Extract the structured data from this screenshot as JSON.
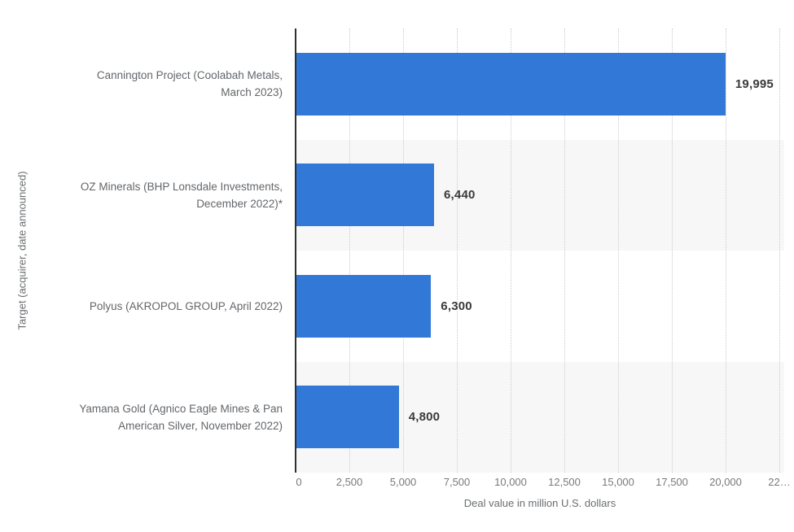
{
  "chart_data": {
    "type": "bar",
    "orientation": "horizontal",
    "title": "",
    "xlabel": "Deal value in million U.S. dollars",
    "ylabel": "Target (acquirer, date announced)",
    "xlim": [
      0,
      22500
    ],
    "grid": "vertical-dotted",
    "legend": "none",
    "bar_color": "#3278d7",
    "band_color": "#f7f7f7",
    "categories": [
      "Cannington Project (Coolabah Metals, March 2023)",
      "OZ Minerals (BHP Lonsdale Investments, December 2022)*",
      "Polyus (AKROPOL GROUP, April 2022)",
      "Yamana Gold (Agnico Eagle Mines & Pan American Silver, November 2022)"
    ],
    "values": [
      19995,
      6440,
      6300,
      4800
    ],
    "bars": [
      {
        "label_lines": [
          "Cannington Project (Coolabah Metals,",
          "March 2023)"
        ],
        "value": 19995,
        "value_label": "19,995"
      },
      {
        "label_lines": [
          "OZ Minerals (BHP Lonsdale Investments,",
          "December 2022)*"
        ],
        "value": 6440,
        "value_label": "6,440"
      },
      {
        "label_lines": [
          "Polyus (AKROPOL GROUP, April 2022)"
        ],
        "value": 6300,
        "value_label": "6,300"
      },
      {
        "label_lines": [
          "Yamana Gold (Agnico Eagle Mines & Pan",
          "American Silver, November 2022)"
        ],
        "value": 4800,
        "value_label": "4,800"
      }
    ],
    "x_ticks": [
      {
        "value": 0,
        "label": "0"
      },
      {
        "value": 2500,
        "label": "2,500"
      },
      {
        "value": 5000,
        "label": "5,000"
      },
      {
        "value": 7500,
        "label": "7,500"
      },
      {
        "value": 10000,
        "label": "10,000"
      },
      {
        "value": 12500,
        "label": "12,500"
      },
      {
        "value": 15000,
        "label": "15,000"
      },
      {
        "value": 17500,
        "label": "17,500"
      },
      {
        "value": 20000,
        "label": "20,000"
      },
      {
        "value": 22500,
        "label": "22…"
      }
    ]
  }
}
